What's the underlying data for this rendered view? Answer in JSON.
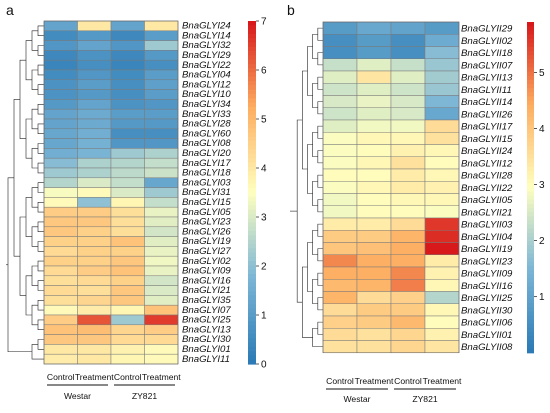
{
  "chart_data": [
    {
      "type": "heatmap",
      "panel": "a",
      "columns": [
        "Control",
        "Treatment",
        "Control",
        "Treatment"
      ],
      "groups": [
        "Westar",
        "ZY821"
      ],
      "rows": [
        "BnaGLYI24",
        "BnaGLYI14",
        "BnaGLYI32",
        "BnaGLYI29",
        "BnaGLYI22",
        "BnaGLYI04",
        "BnaGLYI12",
        "BnaGLYI10",
        "BnaGLYI34",
        "BnaGLYI33",
        "BnaGLYI28",
        "BnaGLYI60",
        "BnaGLYI08",
        "BnaGLYI20",
        "BnaGLYI17",
        "BnaGLYI18",
        "BnaGLYI03",
        "BnaGLYI31",
        "BnaGLYI15",
        "BnaGLYI05",
        "BnaGLYI23",
        "BnaGLYI26",
        "BnaGLYI19",
        "BnaGLYI27",
        "BnaGLYI02",
        "BnaGLYI09",
        "BnaGLYI16",
        "BnaGLYI21",
        "BnaGLYI35",
        "BnaGLYI07",
        "BnaGLYI25",
        "BnaGLYI13",
        "BnaGLYI30",
        "BnaGLYI01",
        "BnaGLYI11"
      ],
      "values": [
        [
          1.2,
          4.0,
          1.2,
          4.0
        ],
        [
          0.5,
          0.9,
          0.4,
          1.0
        ],
        [
          0.8,
          1.2,
          0.8,
          2.2
        ],
        [
          0.4,
          0.7,
          0.4,
          0.9
        ],
        [
          0.3,
          0.6,
          0.3,
          0.6
        ],
        [
          0.5,
          0.8,
          0.5,
          1.0
        ],
        [
          0.7,
          1.0,
          0.6,
          1.1
        ],
        [
          0.7,
          0.9,
          0.6,
          1.0
        ],
        [
          0.9,
          1.2,
          0.7,
          0.8
        ],
        [
          1.2,
          1.4,
          1.0,
          1.0
        ],
        [
          1.2,
          1.4,
          0.9,
          0.9
        ],
        [
          1.3,
          1.5,
          0.6,
          0.6
        ],
        [
          1.3,
          1.6,
          0.8,
          0.8
        ],
        [
          1.5,
          1.7,
          2.2,
          2.4
        ],
        [
          1.9,
          2.4,
          2.5,
          2.7
        ],
        [
          2.2,
          2.4,
          2.6,
          2.8
        ],
        [
          2.5,
          3.0,
          2.7,
          1.3
        ],
        [
          3.4,
          3.6,
          3.0,
          2.2
        ],
        [
          3.6,
          2.0,
          3.7,
          2.7
        ],
        [
          4.6,
          4.6,
          4.2,
          3.2
        ],
        [
          4.7,
          4.7,
          4.2,
          3.1
        ],
        [
          4.7,
          4.5,
          4.2,
          2.9
        ],
        [
          4.5,
          4.5,
          4.8,
          3.1
        ],
        [
          4.3,
          4.5,
          4.5,
          3.2
        ],
        [
          4.5,
          4.5,
          4.7,
          3.3
        ],
        [
          4.3,
          4.6,
          4.8,
          3.2
        ],
        [
          4.2,
          4.3,
          4.5,
          2.9
        ],
        [
          4.3,
          4.2,
          4.7,
          3.0
        ],
        [
          4.2,
          4.4,
          4.7,
          3.1
        ],
        [
          3.6,
          3.9,
          3.7,
          4.8
        ],
        [
          4.6,
          6.3,
          2.2,
          6.6
        ],
        [
          4.8,
          4.9,
          4.4,
          4.6
        ],
        [
          4.7,
          4.7,
          4.3,
          4.3
        ],
        [
          4.0,
          4.0,
          3.8,
          3.6
        ],
        [
          3.9,
          4.0,
          3.7,
          3.6
        ]
      ],
      "colorbar": {
        "min": 0,
        "max": 7,
        "ticks": [
          0,
          1,
          2,
          3,
          4,
          5,
          6,
          7
        ]
      }
    },
    {
      "type": "heatmap",
      "panel": "b",
      "columns": [
        "Control",
        "Treatment",
        "Control",
        "Treatment"
      ],
      "groups": [
        "Westar",
        "ZY821"
      ],
      "rows": [
        "BnaGLYII29",
        "BnaGLYII02",
        "BnaGLYII18",
        "BnaGLYII07",
        "BnaGLYII13",
        "BnaGLYII11",
        "BnaGLYII14",
        "BnaGLYII26",
        "BnaGLYII17",
        "BnaGLYII15",
        "BnaGLYII24",
        "BnaGLYII12",
        "BnaGLYII28",
        "BnaGLYII22",
        "BnaGLYII05",
        "BnaGLYII21",
        "BnaGLYII03",
        "BnaGLYII04",
        "BnaGLYII19",
        "BnaGLYII23",
        "BnaGLYII09",
        "BnaGLYII16",
        "BnaGLYII25",
        "BnaGLYII30",
        "BnaGLYII06",
        "BnaGLYII01",
        "BnaGLYII08"
      ],
      "values": [
        [
          0.8,
          1.1,
          1.0,
          0.8
        ],
        [
          0.5,
          0.8,
          0.5,
          1.2
        ],
        [
          0.5,
          0.8,
          0.5,
          1.6
        ],
        [
          2.3,
          2.6,
          2.3,
          1.8
        ],
        [
          2.6,
          3.4,
          2.6,
          1.9
        ],
        [
          2.4,
          2.6,
          2.4,
          1.8
        ],
        [
          2.5,
          2.7,
          2.5,
          1.5
        ],
        [
          2.4,
          2.6,
          2.5,
          1.1
        ],
        [
          2.6,
          2.8,
          2.8,
          3.6
        ],
        [
          2.9,
          3.1,
          3.1,
          3.5
        ],
        [
          2.9,
          3.0,
          3.2,
          3.1
        ],
        [
          2.9,
          3.1,
          3.5,
          3.0
        ],
        [
          3.0,
          3.0,
          3.3,
          3.1
        ],
        [
          2.9,
          3.1,
          3.3,
          3.2
        ],
        [
          2.8,
          3.0,
          3.1,
          3.1
        ],
        [
          2.8,
          3.0,
          3.0,
          2.9
        ],
        [
          3.3,
          3.3,
          3.6,
          5.6
        ],
        [
          3.9,
          3.9,
          4.3,
          5.7
        ],
        [
          4.0,
          4.1,
          4.4,
          5.9
        ],
        [
          4.8,
          4.4,
          4.4,
          3.3
        ],
        [
          4.4,
          4.4,
          4.8,
          3.2
        ],
        [
          4.2,
          4.3,
          4.9,
          3.1
        ],
        [
          4.3,
          3.6,
          3.8,
          2.1
        ],
        [
          3.6,
          3.9,
          3.9,
          3.1
        ],
        [
          3.8,
          3.9,
          4.2,
          3.0
        ],
        [
          3.6,
          3.5,
          3.7,
          3.2
        ],
        [
          3.5,
          3.5,
          3.7,
          3.4
        ]
      ],
      "colorbar": {
        "min": 0,
        "max": 5.9,
        "ticks": [
          1,
          2,
          3,
          4,
          5
        ]
      }
    }
  ]
}
